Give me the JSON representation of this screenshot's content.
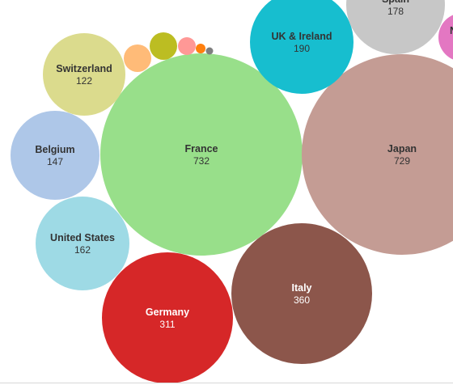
{
  "chart_data": {
    "type": "bubble",
    "bubbles": [
      {
        "label": "France",
        "value": "732",
        "color": "#98df8a",
        "text_color": "#333333"
      },
      {
        "label": "Japan",
        "value": "729",
        "color": "#c49c94",
        "text_color": "#333333"
      },
      {
        "label": "Italy",
        "value": "360",
        "color": "#8c564b",
        "text_color": "#ffffff"
      },
      {
        "label": "Germany",
        "value": "311",
        "color": "#d62728",
        "text_color": "#ffffff"
      },
      {
        "label": "UK & Ireland",
        "value": "190",
        "color": "#17becf",
        "text_color": "#333333"
      },
      {
        "label": "Spain",
        "value": "178",
        "color": "#c7c7c7",
        "text_color": "#333333"
      },
      {
        "label": "United States",
        "value": "162",
        "color": "#9edae5",
        "text_color": "#333333"
      },
      {
        "label": "Belgium",
        "value": "147",
        "color": "#aec7e8",
        "text_color": "#333333"
      },
      {
        "label": "Switzerland",
        "value": "122",
        "color": "#dbdb8d",
        "text_color": "#333333"
      },
      {
        "label": "N",
        "value": "",
        "color": "#e377c2",
        "text_color": "#333333"
      },
      {
        "label": "",
        "value": "",
        "color": "#bcbd22",
        "text_color": "#333333"
      },
      {
        "label": "",
        "value": "",
        "color": "#ffbb78",
        "text_color": "#333333"
      },
      {
        "label": "",
        "value": "",
        "color": "#ff9896",
        "text_color": "#333333"
      },
      {
        "label": "",
        "value": "",
        "color": "#ff7f0e",
        "text_color": "#333333"
      },
      {
        "label": "",
        "value": "",
        "color": "#7f7f7f",
        "text_color": "#333333"
      }
    ]
  }
}
